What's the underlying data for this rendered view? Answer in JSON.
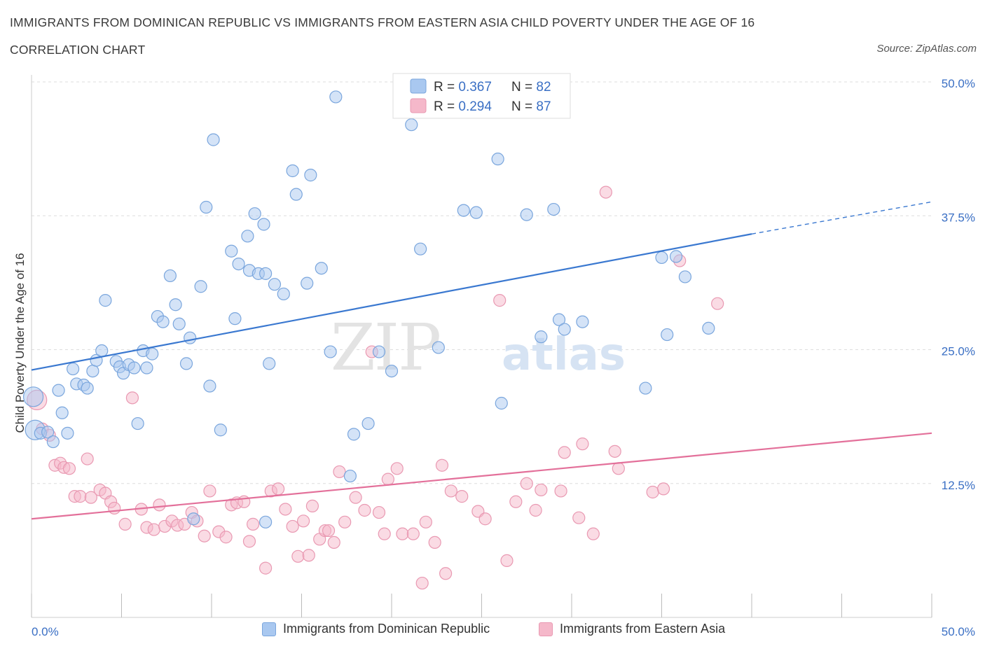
{
  "title": "IMMIGRANTS FROM DOMINICAN REPUBLIC VS IMMIGRANTS FROM EASTERN ASIA CHILD POVERTY UNDER THE AGE OF 16",
  "subtitle": "CORRELATION CHART",
  "source": "Source: ZipAtlas.com",
  "watermark": {
    "zip": "ZIP",
    "atlas": "atlas"
  },
  "colors": {
    "blue_fill": "#a9c8f0",
    "blue_stroke": "#7aa6dd",
    "blue_line": "#3a78d0",
    "pink_fill": "#f5b8ca",
    "pink_stroke": "#e999b2",
    "pink_line": "#e3709a",
    "value_text": "#3a6fc4",
    "grid": "#dedede"
  },
  "legend_top": [
    {
      "r_label": "R = ",
      "r_value": "0.367",
      "n_label": "N = ",
      "n_value": "82",
      "color": "blue"
    },
    {
      "r_label": "R = ",
      "r_value": "0.294",
      "n_label": "N = ",
      "n_value": "87",
      "color": "pink"
    }
  ],
  "legend_bottom": [
    {
      "label": "Immigrants from Dominican Republic",
      "color": "blue"
    },
    {
      "label": "Immigrants from Eastern Asia",
      "color": "pink"
    }
  ],
  "chart_data": {
    "type": "scatter",
    "title": "IMMIGRANTS FROM DOMINICAN REPUBLIC VS IMMIGRANTS FROM EASTERN ASIA CHILD POVERTY UNDER THE AGE OF 16",
    "subtitle": "CORRELATION CHART",
    "xlabel": "",
    "ylabel": "Child Poverty Under the Age of 16",
    "xlim": [
      0,
      50
    ],
    "ylim": [
      0,
      50
    ],
    "x_tick_labels": [
      "0.0%",
      "50.0%"
    ],
    "y_ticks": [
      12.5,
      25.0,
      37.5,
      50.0
    ],
    "y_tick_labels": [
      "12.5%",
      "25.0%",
      "37.5%",
      "50.0%"
    ],
    "grid": true,
    "legend_position": "top-center",
    "series": [
      {
        "name": "Immigrants from Dominican Republic",
        "color": "blue",
        "R": 0.367,
        "N": 82,
        "trend": {
          "x": [
            0,
            40
          ],
          "y": [
            23.1,
            35.8
          ],
          "dashed_to": [
            50,
            38.8
          ]
        },
        "points": [
          [
            0.2,
            17.5
          ],
          [
            0.5,
            17.2
          ],
          [
            0.9,
            17.3
          ],
          [
            1.2,
            16.4
          ],
          [
            1.5,
            21.2
          ],
          [
            1.7,
            19.1
          ],
          [
            2.0,
            17.2
          ],
          [
            2.3,
            23.2
          ],
          [
            2.5,
            21.8
          ],
          [
            2.9,
            21.7
          ],
          [
            3.1,
            21.4
          ],
          [
            3.4,
            23.0
          ],
          [
            3.6,
            24.0
          ],
          [
            3.9,
            24.9
          ],
          [
            4.1,
            29.6
          ],
          [
            4.7,
            23.9
          ],
          [
            4.9,
            23.4
          ],
          [
            5.1,
            22.8
          ],
          [
            5.4,
            23.6
          ],
          [
            5.7,
            23.3
          ],
          [
            5.9,
            18.1
          ],
          [
            6.2,
            24.9
          ],
          [
            6.4,
            23.3
          ],
          [
            6.7,
            24.6
          ],
          [
            7.0,
            28.1
          ],
          [
            7.3,
            27.6
          ],
          [
            7.7,
            31.9
          ],
          [
            8.0,
            29.2
          ],
          [
            8.2,
            27.4
          ],
          [
            8.6,
            23.7
          ],
          [
            8.8,
            26.1
          ],
          [
            9.0,
            9.2
          ],
          [
            9.4,
            30.9
          ],
          [
            9.7,
            38.3
          ],
          [
            9.9,
            21.6
          ],
          [
            10.1,
            44.6
          ],
          [
            10.5,
            17.5
          ],
          [
            11.1,
            34.2
          ],
          [
            11.3,
            27.9
          ],
          [
            11.5,
            33.0
          ],
          [
            12.0,
            35.6
          ],
          [
            12.1,
            32.4
          ],
          [
            12.4,
            37.7
          ],
          [
            12.6,
            32.1
          ],
          [
            12.9,
            36.7
          ],
          [
            13.0,
            8.9
          ],
          [
            13.2,
            23.7
          ],
          [
            13.0,
            32.1
          ],
          [
            13.5,
            31.1
          ],
          [
            14.0,
            30.2
          ],
          [
            14.5,
            41.7
          ],
          [
            14.7,
            39.5
          ],
          [
            15.3,
            31.2
          ],
          [
            15.5,
            41.3
          ],
          [
            16.1,
            32.6
          ],
          [
            16.6,
            24.8
          ],
          [
            16.9,
            48.6
          ],
          [
            17.7,
            13.2
          ],
          [
            17.9,
            17.1
          ],
          [
            18.7,
            18.1
          ],
          [
            19.3,
            24.8
          ],
          [
            20.0,
            23.0
          ],
          [
            21.1,
            46.0
          ],
          [
            21.6,
            34.4
          ],
          [
            22.6,
            25.2
          ],
          [
            24.0,
            38.0
          ],
          [
            24.7,
            37.8
          ],
          [
            25.9,
            42.8
          ],
          [
            26.1,
            20.0
          ],
          [
            27.5,
            37.6
          ],
          [
            28.3,
            26.2
          ],
          [
            29.0,
            38.1
          ],
          [
            29.3,
            27.8
          ],
          [
            29.6,
            26.9
          ],
          [
            30.6,
            27.6
          ],
          [
            34.1,
            21.4
          ],
          [
            35.0,
            33.6
          ],
          [
            35.3,
            26.4
          ],
          [
            35.8,
            33.7
          ],
          [
            36.3,
            31.8
          ],
          [
            37.6,
            27.0
          ],
          [
            0.1,
            20.6
          ]
        ]
      },
      {
        "name": "Immigrants from Eastern Asia",
        "color": "pink",
        "R": 0.294,
        "N": 87,
        "trend": {
          "x": [
            0,
            50
          ],
          "y": [
            9.2,
            17.2
          ]
        },
        "points": [
          [
            0.3,
            20.3
          ],
          [
            0.6,
            17.6
          ],
          [
            1.0,
            17.0
          ],
          [
            1.3,
            14.2
          ],
          [
            1.6,
            14.4
          ],
          [
            1.8,
            14.0
          ],
          [
            2.1,
            13.9
          ],
          [
            2.4,
            11.3
          ],
          [
            2.7,
            11.3
          ],
          [
            3.1,
            14.8
          ],
          [
            3.3,
            11.2
          ],
          [
            3.8,
            11.9
          ],
          [
            4.1,
            11.6
          ],
          [
            4.4,
            10.8
          ],
          [
            4.6,
            10.2
          ],
          [
            5.2,
            8.7
          ],
          [
            5.6,
            20.5
          ],
          [
            6.1,
            10.1
          ],
          [
            6.4,
            8.4
          ],
          [
            6.8,
            8.2
          ],
          [
            7.1,
            10.5
          ],
          [
            7.4,
            8.5
          ],
          [
            7.8,
            9.0
          ],
          [
            8.1,
            8.6
          ],
          [
            8.5,
            8.7
          ],
          [
            8.9,
            9.8
          ],
          [
            9.2,
            9.0
          ],
          [
            9.6,
            7.6
          ],
          [
            9.9,
            11.8
          ],
          [
            10.4,
            8.0
          ],
          [
            10.8,
            7.5
          ],
          [
            11.1,
            10.5
          ],
          [
            11.4,
            10.7
          ],
          [
            11.8,
            10.8
          ],
          [
            12.1,
            7.1
          ],
          [
            12.3,
            8.7
          ],
          [
            13.0,
            4.6
          ],
          [
            13.3,
            11.8
          ],
          [
            13.7,
            12.0
          ],
          [
            14.1,
            10.1
          ],
          [
            14.5,
            8.5
          ],
          [
            14.8,
            5.7
          ],
          [
            15.1,
            9.0
          ],
          [
            15.4,
            5.8
          ],
          [
            15.6,
            10.4
          ],
          [
            16.0,
            7.3
          ],
          [
            16.3,
            8.1
          ],
          [
            16.5,
            8.1
          ],
          [
            16.8,
            7.0
          ],
          [
            17.1,
            13.6
          ],
          [
            17.4,
            8.9
          ],
          [
            18.0,
            11.2
          ],
          [
            18.5,
            10.0
          ],
          [
            18.9,
            24.8
          ],
          [
            19.3,
            9.8
          ],
          [
            19.6,
            7.8
          ],
          [
            19.8,
            12.9
          ],
          [
            20.3,
            13.9
          ],
          [
            20.6,
            7.8
          ],
          [
            21.2,
            7.8
          ],
          [
            21.7,
            3.2
          ],
          [
            21.9,
            8.9
          ],
          [
            22.4,
            7.0
          ],
          [
            22.8,
            14.2
          ],
          [
            23.0,
            4.1
          ],
          [
            23.3,
            11.8
          ],
          [
            23.9,
            11.3
          ],
          [
            24.8,
            9.9
          ],
          [
            25.2,
            9.2
          ],
          [
            26.0,
            29.6
          ],
          [
            26.4,
            5.3
          ],
          [
            26.9,
            10.8
          ],
          [
            27.5,
            12.5
          ],
          [
            28.0,
            10.0
          ],
          [
            28.3,
            11.9
          ],
          [
            29.4,
            11.8
          ],
          [
            29.6,
            15.4
          ],
          [
            30.4,
            9.3
          ],
          [
            30.6,
            16.2
          ],
          [
            31.2,
            7.8
          ],
          [
            31.9,
            39.7
          ],
          [
            32.4,
            15.5
          ],
          [
            32.6,
            13.9
          ],
          [
            34.5,
            11.7
          ],
          [
            35.1,
            12.0
          ],
          [
            36.0,
            33.3
          ],
          [
            38.1,
            29.3
          ]
        ]
      }
    ]
  }
}
